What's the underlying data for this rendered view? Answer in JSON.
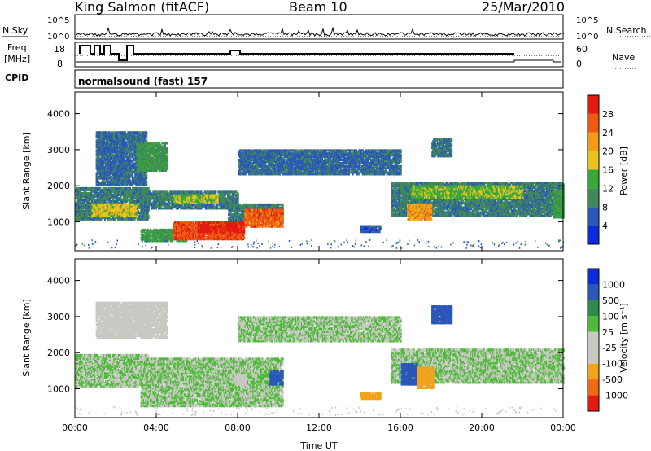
{
  "header": {
    "station": "King Salmon (fitACF)",
    "beam": "Beam 10",
    "date": "25/Mar/2010"
  },
  "labels": {
    "nsky": "N.Sky",
    "nsearch": "N.Search",
    "freq_line1": "Freq.",
    "freq_line2": "[MHz]",
    "nave": "Nave",
    "cpid": "CPID",
    "cpid_value": "normalsound (fast) 157",
    "noise_tick_top": "10^5",
    "noise_tick_bottom": "10^0",
    "freq_tick_top": "18",
    "freq_tick_bottom": "8",
    "nave_tick_top": "60",
    "nave_tick_bottom": "0"
  },
  "colors": {
    "frame": "#000000",
    "grid_dot": "#000000",
    "power_scale": [
      "#0b2bd8",
      "#2a57b8",
      "#3f8a56",
      "#39a83b",
      "#e7c51c",
      "#f39a17",
      "#ee5b10",
      "#e21b12"
    ],
    "velocity_scale": [
      "#e21b12",
      "#ef6a12",
      "#f3a21b",
      "#c9c9c4",
      "#c9c9c4",
      "#4fb93a",
      "#2f8a4e",
      "#2a57b8",
      "#0b2bd8"
    ]
  },
  "chart_data": [
    {
      "type": "heatmap",
      "name": "power",
      "ylabel": "Slant Range [km]",
      "ylim": [
        200,
        4600
      ],
      "yticks": [
        1000,
        2000,
        3000,
        4000
      ],
      "xlim": [
        0,
        24
      ],
      "xticks": [
        "00:00",
        "04:00",
        "08:00",
        "12:00",
        "16:00",
        "20:00",
        "00:00"
      ],
      "colorbar": {
        "label": "Power [dB]",
        "ticks": [
          4,
          8,
          12,
          16,
          20,
          24,
          28
        ],
        "range": [
          0,
          32
        ]
      },
      "blobs": [
        {
          "t0": 0.0,
          "t1": 3.6,
          "r0": 1050,
          "r1": 1950,
          "v": 9
        },
        {
          "t0": 0.8,
          "t1": 3.0,
          "r0": 1150,
          "r1": 1500,
          "v": 18
        },
        {
          "t0": 3.2,
          "t1": 8.0,
          "r0": 1350,
          "r1": 1850,
          "v": 9
        },
        {
          "t0": 4.8,
          "t1": 7.0,
          "r0": 1500,
          "r1": 1750,
          "v": 16
        },
        {
          "t0": 7.5,
          "t1": 10.2,
          "r0": 1000,
          "r1": 1500,
          "v": 9
        },
        {
          "t0": 3.2,
          "t1": 5.5,
          "r0": 450,
          "r1": 800,
          "v": 12
        },
        {
          "t0": 4.8,
          "t1": 8.3,
          "r0": 500,
          "r1": 1000,
          "v": 27
        },
        {
          "t0": 6.0,
          "t1": 8.3,
          "r0": 700,
          "r1": 1000,
          "v": 30
        },
        {
          "t0": 8.3,
          "t1": 10.2,
          "r0": 850,
          "r1": 1350,
          "v": 26
        },
        {
          "t0": 8.0,
          "t1": 16.0,
          "r0": 2300,
          "r1": 3000,
          "v": 7
        },
        {
          "t0": 15.5,
          "t1": 24.0,
          "r0": 1150,
          "r1": 2100,
          "v": 9
        },
        {
          "t0": 16.5,
          "t1": 22.0,
          "r0": 1650,
          "r1": 2000,
          "v": 15
        },
        {
          "t0": 16.3,
          "t1": 17.5,
          "r0": 1050,
          "r1": 1500,
          "v": 22
        },
        {
          "t0": 1.0,
          "t1": 3.5,
          "r0": 2000,
          "r1": 3500,
          "v": 7
        },
        {
          "t0": 3.0,
          "t1": 4.5,
          "r0": 2400,
          "r1": 3200,
          "v": 11
        },
        {
          "t0": 17.5,
          "t1": 18.5,
          "r0": 2800,
          "r1": 3300,
          "v": 8
        },
        {
          "t0": 14.0,
          "t1": 15.0,
          "r0": 700,
          "r1": 900,
          "v": 6
        },
        {
          "t0": 23.5,
          "t1": 24.0,
          "r0": 1100,
          "r1": 1900,
          "v": 12
        }
      ]
    },
    {
      "type": "heatmap",
      "name": "velocity",
      "ylabel": "Slant Range [km]",
      "ylim": [
        200,
        4600
      ],
      "yticks": [
        1000,
        2000,
        3000,
        4000
      ],
      "xlim": [
        0,
        24
      ],
      "xticks": [
        "00:00",
        "04:00",
        "08:00",
        "12:00",
        "16:00",
        "20:00",
        "00:00"
      ],
      "xlabel": "Time UT",
      "colorbar": {
        "label": "Velocity [m s⁻¹]",
        "ticks": [
          "1000",
          "500",
          "100",
          "25",
          "-25",
          "-100",
          "-500",
          "-1000"
        ]
      },
      "blobs": [
        {
          "t0": 0.0,
          "t1": 3.6,
          "r0": 1050,
          "r1": 1950,
          "v": 0
        },
        {
          "t0": 3.2,
          "t1": 10.2,
          "r0": 500,
          "r1": 1850,
          "v": 0
        },
        {
          "t0": 8.0,
          "t1": 16.0,
          "r0": 2300,
          "r1": 3000,
          "v": 0
        },
        {
          "t0": 15.5,
          "t1": 24.0,
          "r0": 1150,
          "r1": 2100,
          "v": 0
        },
        {
          "t0": 16.0,
          "t1": 16.8,
          "r0": 1100,
          "r1": 1700,
          "v": 150
        },
        {
          "t0": 16.8,
          "t1": 17.6,
          "r0": 1000,
          "r1": 1600,
          "v": -150
        },
        {
          "t0": 9.5,
          "t1": 10.2,
          "r0": 1100,
          "r1": 1500,
          "v": 150
        },
        {
          "t0": 7.0,
          "t1": 9.5,
          "r0": 1150,
          "r1": 1500,
          "v": 0
        },
        {
          "t0": 7.8,
          "t1": 8.4,
          "r0": 1100,
          "r1": 1400,
          "v": -80
        },
        {
          "t0": 1.0,
          "t1": 4.5,
          "r0": 2400,
          "r1": 3400,
          "v": -80
        },
        {
          "t0": 17.5,
          "t1": 18.5,
          "r0": 2800,
          "r1": 3300,
          "v": 150
        },
        {
          "t0": 14.0,
          "t1": 15.0,
          "r0": 700,
          "r1": 900,
          "v": -200
        }
      ]
    }
  ]
}
